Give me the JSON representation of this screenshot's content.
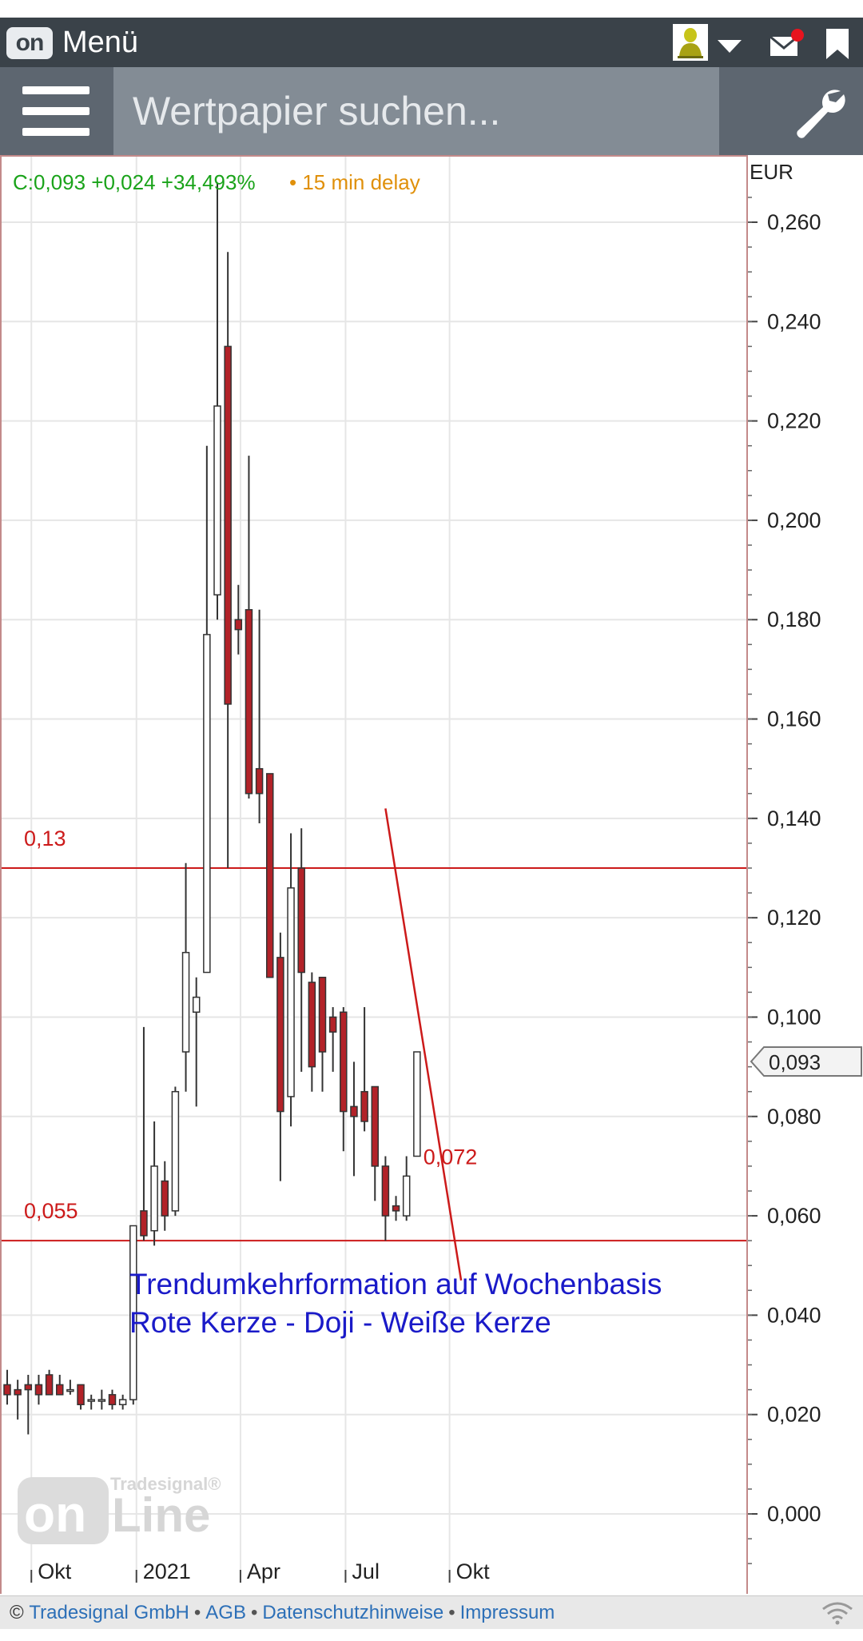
{
  "topbar": {
    "logo_text": "on",
    "menu_label": "Menü",
    "icons": [
      "user-icon",
      "chevron-down-icon",
      "mail-icon",
      "bookmark-icon"
    ],
    "notification_dot_color": "#e8141e"
  },
  "search": {
    "placeholder": "Wertpapier suchen..."
  },
  "quote": {
    "close_label": "C:0,093 +0,024 +34,493%",
    "delay_label": "• 15 min delay",
    "current_price": "0,093"
  },
  "chart_data": {
    "type": "candlestick",
    "currency": "EUR",
    "yticks": [
      "0,260",
      "0,240",
      "0,220",
      "0,200",
      "0,180",
      "0,160",
      "0,140",
      "0,120",
      "0,100",
      "0,080",
      "0,060",
      "0,040",
      "0,020",
      "0,000"
    ],
    "xticks": [
      "Okt",
      "2021",
      "Apr",
      "Jul",
      "Okt"
    ],
    "ylim": [
      0,
      0.27
    ],
    "candles": [
      {
        "o": 0.026,
        "h": 0.029,
        "l": 0.022,
        "c": 0.024
      },
      {
        "o": 0.025,
        "h": 0.027,
        "l": 0.019,
        "c": 0.024
      },
      {
        "o": 0.026,
        "h": 0.028,
        "l": 0.016,
        "c": 0.025
      },
      {
        "o": 0.026,
        "h": 0.028,
        "l": 0.022,
        "c": 0.024
      },
      {
        "o": 0.028,
        "h": 0.029,
        "l": 0.024,
        "c": 0.024
      },
      {
        "o": 0.026,
        "h": 0.028,
        "l": 0.024,
        "c": 0.024
      },
      {
        "o": 0.025,
        "h": 0.027,
        "l": 0.024,
        "c": 0.025
      },
      {
        "o": 0.026,
        "h": 0.026,
        "l": 0.021,
        "c": 0.022
      },
      {
        "o": 0.023,
        "h": 0.024,
        "l": 0.021,
        "c": 0.023
      },
      {
        "o": 0.023,
        "h": 0.025,
        "l": 0.021,
        "c": 0.023
      },
      {
        "o": 0.024,
        "h": 0.025,
        "l": 0.021,
        "c": 0.022
      },
      {
        "o": 0.022,
        "h": 0.024,
        "l": 0.021,
        "c": 0.023
      },
      {
        "o": 0.023,
        "h": 0.058,
        "l": 0.022,
        "c": 0.058
      },
      {
        "o": 0.061,
        "h": 0.098,
        "l": 0.055,
        "c": 0.056
      },
      {
        "o": 0.057,
        "h": 0.079,
        "l": 0.054,
        "c": 0.07
      },
      {
        "o": 0.067,
        "h": 0.071,
        "l": 0.057,
        "c": 0.06
      },
      {
        "o": 0.061,
        "h": 0.086,
        "l": 0.06,
        "c": 0.085
      },
      {
        "o": 0.093,
        "h": 0.131,
        "l": 0.085,
        "c": 0.113
      },
      {
        "o": 0.101,
        "h": 0.108,
        "l": 0.082,
        "c": 0.104
      },
      {
        "o": 0.109,
        "h": 0.215,
        "l": 0.109,
        "c": 0.177
      },
      {
        "o": 0.185,
        "h": 0.268,
        "l": 0.18,
        "c": 0.223
      },
      {
        "o": 0.235,
        "h": 0.254,
        "l": 0.13,
        "c": 0.163
      },
      {
        "o": 0.18,
        "h": 0.187,
        "l": 0.173,
        "c": 0.178
      },
      {
        "o": 0.182,
        "h": 0.213,
        "l": 0.144,
        "c": 0.145
      },
      {
        "o": 0.15,
        "h": 0.182,
        "l": 0.139,
        "c": 0.145
      },
      {
        "o": 0.149,
        "h": 0.149,
        "l": 0.108,
        "c": 0.108
      },
      {
        "o": 0.112,
        "h": 0.117,
        "l": 0.067,
        "c": 0.081
      },
      {
        "o": 0.084,
        "h": 0.137,
        "l": 0.078,
        "c": 0.126
      },
      {
        "o": 0.13,
        "h": 0.138,
        "l": 0.089,
        "c": 0.109
      },
      {
        "o": 0.107,
        "h": 0.109,
        "l": 0.085,
        "c": 0.09
      },
      {
        "o": 0.108,
        "h": 0.108,
        "l": 0.085,
        "c": 0.093
      },
      {
        "o": 0.1,
        "h": 0.102,
        "l": 0.089,
        "c": 0.097
      },
      {
        "o": 0.101,
        "h": 0.102,
        "l": 0.073,
        "c": 0.081
      },
      {
        "o": 0.082,
        "h": 0.091,
        "l": 0.068,
        "c": 0.08
      },
      {
        "o": 0.085,
        "h": 0.102,
        "l": 0.077,
        "c": 0.079
      },
      {
        "o": 0.086,
        "h": 0.086,
        "l": 0.063,
        "c": 0.07
      },
      {
        "o": 0.07,
        "h": 0.072,
        "l": 0.055,
        "c": 0.06
      },
      {
        "o": 0.062,
        "h": 0.064,
        "l": 0.059,
        "c": 0.061
      },
      {
        "o": 0.06,
        "h": 0.072,
        "l": 0.059,
        "c": 0.068
      },
      {
        "o": 0.072,
        "h": 0.093,
        "l": 0.072,
        "c": 0.093
      }
    ],
    "hlines": [
      {
        "value": 0.13,
        "label": "0,13"
      },
      {
        "value": 0.055,
        "label": "0,055"
      }
    ],
    "trendline": {
      "x1": 36.0,
      "y1": 0.142,
      "x2": 43.2,
      "y2": 0.047
    },
    "trend_point_label": "0,072",
    "annotation_lines": [
      "Trendumkehrformation auf Wochenbasis",
      "Rote Kerze - Doji - Weiße Kerze"
    ],
    "watermark": "Tradesignal online",
    "colors": {
      "bearish_body": "#b22228",
      "bullish_body": "#ffffff",
      "line_red": "#cc1a1a",
      "quote_green": "#1aa31a",
      "delay_orange": "#e0900a",
      "annotation_blue": "#1a1ac8",
      "grid": "#e6e6e6",
      "border": "#c38a8a"
    }
  },
  "footer": {
    "copyright": "©",
    "links": [
      "Tradesignal GmbH",
      "AGB",
      "Datenschutzhinweise",
      "Impressum"
    ]
  }
}
